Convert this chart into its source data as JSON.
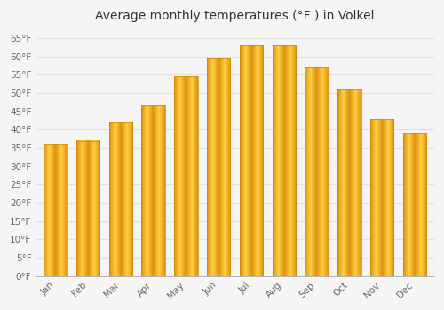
{
  "title": "Average monthly temperatures (°F ) in Volkel",
  "months": [
    "Jan",
    "Feb",
    "Mar",
    "Apr",
    "May",
    "Jun",
    "Jul",
    "Aug",
    "Sep",
    "Oct",
    "Nov",
    "Dec"
  ],
  "values": [
    36,
    37,
    42,
    46.5,
    54.5,
    59.5,
    63,
    63,
    57,
    51,
    43,
    39
  ],
  "bar_color_center": "#FFD966",
  "bar_color_edge": "#E8900A",
  "bar_color_mid": "#FFA500",
  "background_color": "#F5F5F5",
  "grid_color": "#E0E0E0",
  "title_fontsize": 10,
  "tick_fontsize": 7.5,
  "ylim": [
    0,
    68
  ],
  "yticks": [
    0,
    5,
    10,
    15,
    20,
    25,
    30,
    35,
    40,
    45,
    50,
    55,
    60,
    65
  ]
}
